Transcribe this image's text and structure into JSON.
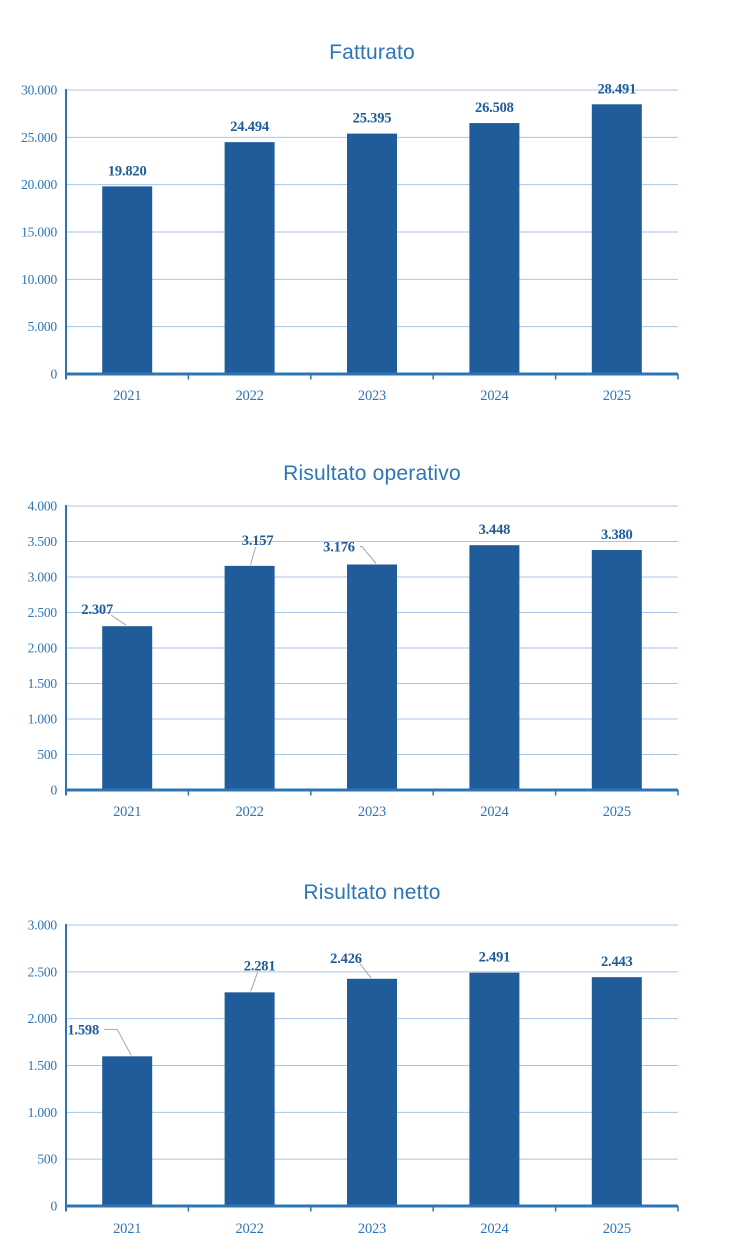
{
  "page": {
    "background": "#ffffff"
  },
  "colors": {
    "bar": "#1f5c99",
    "title": "#2e75b6",
    "axis": "#2e74b5",
    "tick_text": "#2e74b5",
    "data_label": "#1f5c99",
    "gridline": "#a9c5e4",
    "leader_line": "#a6a6a6"
  },
  "chart_data": [
    {
      "type": "bar",
      "title": "Fatturato",
      "categories": [
        "2021",
        "2022",
        "2023",
        "2024",
        "2025"
      ],
      "values": [
        19820,
        24494,
        25395,
        26508,
        28491
      ],
      "value_labels": [
        "19.820",
        "24.494",
        "25.395",
        "26.508",
        "28.491"
      ],
      "ytick_labels": [
        "0",
        "5.000",
        "10.000",
        "15.000",
        "20.000",
        "25.000",
        "30.000"
      ],
      "ylim": [
        0,
        30000
      ],
      "ytick_step": 5000,
      "grid": true,
      "legend": false,
      "label_layout": [
        null,
        null,
        null,
        null,
        null
      ]
    },
    {
      "type": "bar",
      "title": "Risultato operativo",
      "categories": [
        "2021",
        "2022",
        "2023",
        "2024",
        "2025"
      ],
      "values": [
        2307,
        3157,
        3176,
        3448,
        3380
      ],
      "value_labels": [
        "2.307",
        "3.157",
        "3.176",
        "3.448",
        "3.380"
      ],
      "ytick_labels": [
        "0",
        "500",
        "1.000",
        "1.500",
        "2.000",
        "2.500",
        "3.000",
        "3.500",
        "4.000"
      ],
      "ylim": [
        0,
        4000
      ],
      "ytick_step": 500,
      "grid": true,
      "legend": false,
      "label_layout": [
        {
          "dx": -30,
          "gap": 12,
          "leader": "diag"
        },
        {
          "dx": 8,
          "gap": 21,
          "leader": "diag"
        },
        {
          "dx": -33,
          "gap": 13,
          "leader": "elbow"
        },
        null,
        null
      ]
    },
    {
      "type": "bar",
      "title": "Risultato netto",
      "categories": [
        "2021",
        "2022",
        "2023",
        "2024",
        "2025"
      ],
      "values": [
        1598,
        2281,
        2426,
        2491,
        2443
      ],
      "value_labels": [
        "1.598",
        "2.281",
        "2.426",
        "2.491",
        "2.443"
      ],
      "ytick_labels": [
        "0",
        "500",
        "1.000",
        "1.500",
        "2.000",
        "2.500",
        "3.000"
      ],
      "ylim": [
        0,
        3000
      ],
      "ytick_step": 500,
      "grid": true,
      "legend": false,
      "label_layout": [
        {
          "dx": -44,
          "gap": 22,
          "leader": "elbow"
        },
        {
          "dx": 10,
          "gap": 22,
          "leader": "diag"
        },
        {
          "dx": -26,
          "gap": 16,
          "leader": "diag"
        },
        null,
        null
      ]
    }
  ]
}
